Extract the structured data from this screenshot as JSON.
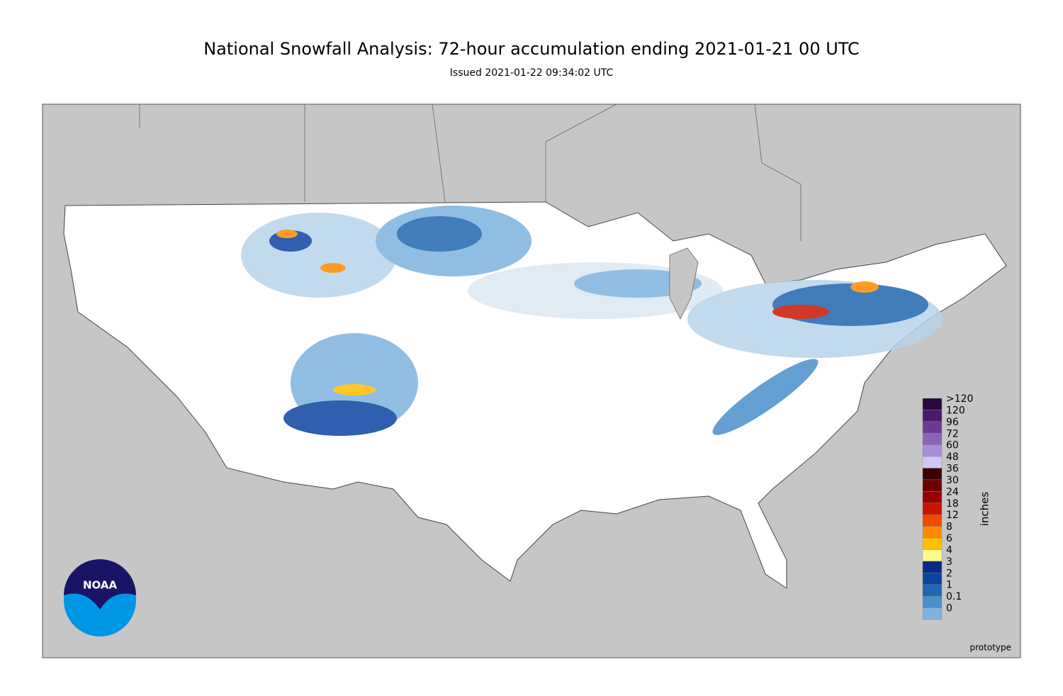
{
  "header": {
    "title": "National Snowfall Analysis: 72-hour accumulation ending 2021-01-21 00 UTC",
    "subtitle": "Issued 2021-01-22 09:34:02 UTC"
  },
  "legend": {
    "unit": "inches",
    "entries": [
      {
        "label": ">120",
        "color": "#2a0a3a"
      },
      {
        "label": "120",
        "color": "#4b1a6c"
      },
      {
        "label": "96",
        "color": "#6b3b94"
      },
      {
        "label": "72",
        "color": "#8a64b8"
      },
      {
        "label": "60",
        "color": "#a98fd8"
      },
      {
        "label": "48",
        "color": "#cfc8f7"
      },
      {
        "label": "36",
        "color": "#3b0000"
      },
      {
        "label": "30",
        "color": "#6a0000"
      },
      {
        "label": "24",
        "color": "#990000"
      },
      {
        "label": "18",
        "color": "#cc1500"
      },
      {
        "label": "12",
        "color": "#ee4a00"
      },
      {
        "label": "8",
        "color": "#ff8a00"
      },
      {
        "label": "6",
        "color": "#ffc000"
      },
      {
        "label": "4",
        "color": "#fffa8c"
      },
      {
        "label": "3",
        "color": "#0a2a8a"
      },
      {
        "label": "2",
        "color": "#0b44a0"
      },
      {
        "label": "1",
        "color": "#2166b0"
      },
      {
        "label": "0.1",
        "color": "#4a8fcc"
      },
      {
        "label": "0",
        "color": "#7db3df"
      }
    ]
  },
  "logo": "NOAA",
  "footnote": "prototype"
}
